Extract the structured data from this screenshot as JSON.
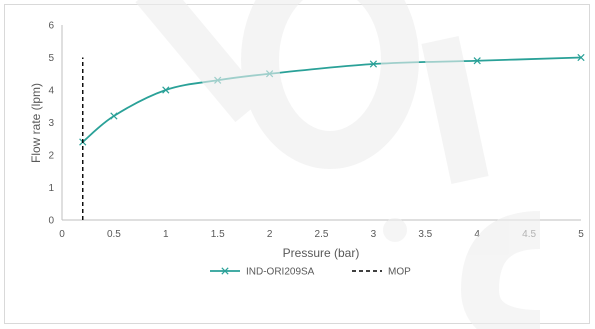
{
  "chart_data": {
    "type": "line",
    "title": "",
    "xlabel": "Pressure (bar)",
    "ylabel": "Flow rate (lpm)",
    "xlim": [
      0,
      5
    ],
    "ylim": [
      0,
      6
    ],
    "x_ticks": [
      "0",
      "0.5",
      "1",
      "1.5",
      "2",
      "2.5",
      "3",
      "3.5",
      "4",
      "4.5",
      "5"
    ],
    "y_ticks": [
      "0",
      "1",
      "2",
      "3",
      "4",
      "5",
      "6"
    ],
    "grid": false,
    "legend_position": "bottom",
    "series": [
      {
        "name": "IND-ORI209SA",
        "color": "#2aa198",
        "marker": "x",
        "x": [
          0.2,
          0.5,
          1,
          1.5,
          2,
          3,
          4,
          5
        ],
        "y": [
          2.4,
          3.2,
          4.0,
          4.3,
          4.5,
          4.8,
          4.9,
          5.0
        ]
      },
      {
        "name": "MOP",
        "color": "#000000",
        "style": "dashed",
        "x": [
          0.2,
          0.2
        ],
        "y": [
          0,
          5
        ]
      }
    ]
  }
}
